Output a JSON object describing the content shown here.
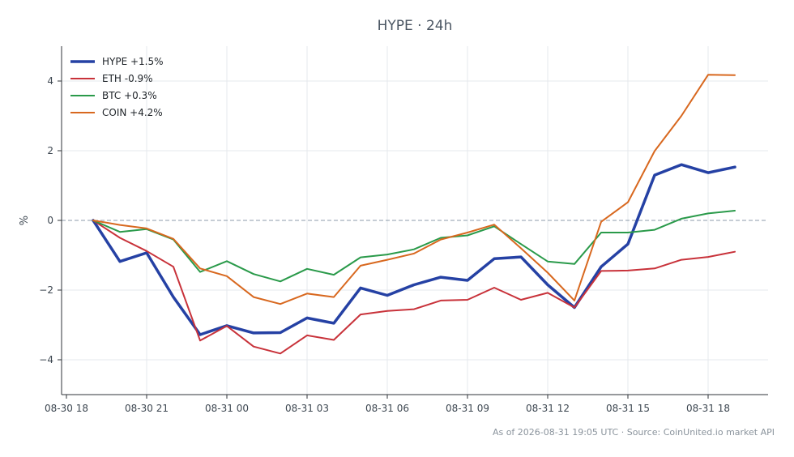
{
  "chart_data": {
    "type": "line",
    "title": "HYPE · 24h",
    "ylabel": "%",
    "xlabel": "",
    "x_tick_labels": [
      "08-30 18",
      "08-30 21",
      "08-31 00",
      "08-31 03",
      "08-31 06",
      "08-31 09",
      "08-31 12",
      "08-31 15",
      "08-31 18"
    ],
    "x_tick_hours": [
      0,
      3,
      6,
      9,
      12,
      15,
      18,
      21,
      24
    ],
    "x_hours": [
      1,
      2,
      3,
      4,
      5,
      6,
      7,
      8,
      9,
      10,
      11,
      12,
      13,
      14,
      15,
      16,
      17,
      18,
      19,
      20,
      21,
      22,
      23,
      24,
      25
    ],
    "y_ticks": [
      -4,
      -2,
      0,
      2,
      4
    ],
    "y_tick_labels": [
      "−4",
      "−2",
      "0",
      "2",
      "4"
    ],
    "ylim": [
      -5,
      5
    ],
    "zero_line": true,
    "grid": true,
    "legend_position": "top-left",
    "series": [
      {
        "name": "HYPE +1.5%",
        "color": "#2541a4",
        "width": 3.5,
        "values": [
          0,
          -1.18,
          -0.93,
          -2.2,
          -3.28,
          -3.02,
          -3.23,
          -3.22,
          -2.8,
          -2.95,
          -1.94,
          -2.15,
          -1.85,
          -1.63,
          -1.72,
          -1.1,
          -1.05,
          -1.85,
          -2.5,
          -1.33,
          -0.68,
          1.3,
          1.6,
          1.37,
          1.53
        ]
      },
      {
        "name": "ETH -0.9%",
        "color": "#c8323a",
        "width": 2,
        "values": [
          0,
          -0.5,
          -0.88,
          -1.33,
          -3.45,
          -3.03,
          -3.62,
          -3.82,
          -3.3,
          -3.43,
          -2.7,
          -2.6,
          -2.55,
          -2.3,
          -2.28,
          -1.93,
          -2.28,
          -2.08,
          -2.5,
          -1.45,
          -1.44,
          -1.38,
          -1.13,
          -1.05,
          -0.9
        ]
      },
      {
        "name": "BTC +0.3%",
        "color": "#2a9a4a",
        "width": 2,
        "values": [
          0,
          -0.33,
          -0.25,
          -0.55,
          -1.48,
          -1.17,
          -1.54,
          -1.75,
          -1.39,
          -1.56,
          -1.06,
          -0.98,
          -0.83,
          -0.5,
          -0.43,
          -0.17,
          -0.68,
          -1.18,
          -1.25,
          -0.35,
          -0.35,
          -0.27,
          0.05,
          0.2,
          0.28
        ]
      },
      {
        "name": "COIN +4.2%",
        "color": "#d8681f",
        "width": 2,
        "values": [
          0,
          -0.13,
          -0.23,
          -0.53,
          -1.38,
          -1.6,
          -2.2,
          -2.4,
          -2.1,
          -2.2,
          -1.3,
          -1.13,
          -0.95,
          -0.55,
          -0.35,
          -0.12,
          -0.8,
          -1.5,
          -2.3,
          -0.04,
          0.52,
          1.99,
          3.0,
          4.18,
          4.17
        ]
      }
    ]
  },
  "footer": {
    "note": "As of 2026-08-31 19:05 UTC · Source: CoinUnited.io market API"
  }
}
